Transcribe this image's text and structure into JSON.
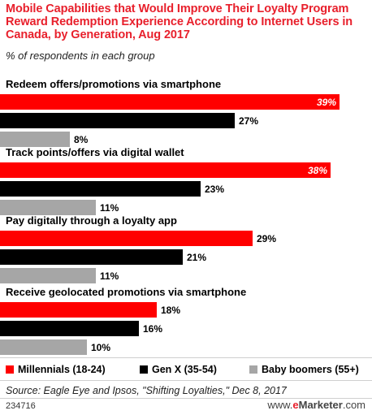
{
  "title": "Mobile Capabilities that Would Improve Their Loyalty Program Reward Redemption Experience According to Internet Users in Canada, by Generation, Aug 2017",
  "subtitle": "% of respondents in each group",
  "source": "Source: Eagle Eye and Ipsos, \"Shifting Loyalties,\" Dec 8, 2017",
  "footer": {
    "chart_id": "234716",
    "brand_prefix": "www.",
    "brand_e": "e",
    "brand_name": "Marketer",
    "brand_suffix": ".com"
  },
  "colors": {
    "millennials": "#ff0000",
    "genx": "#000000",
    "boomers": "#a6a6a6",
    "title": "#e8202c"
  },
  "chart_data": {
    "type": "bar",
    "orientation": "horizontal",
    "categories": [
      "Redeem offers/promotions via smartphone",
      "Track points/offers via digital wallet",
      "Pay digitally through a loyalty app",
      "Receive geolocated promotions via smartphone"
    ],
    "series": [
      {
        "name": "Millennials (18-24)",
        "values": [
          39,
          38,
          29,
          18
        ]
      },
      {
        "name": "Gen X (35-54)",
        "values": [
          27,
          23,
          21,
          16
        ]
      },
      {
        "name": "Baby boomers (55+)",
        "values": [
          8,
          11,
          11,
          10
        ]
      }
    ],
    "value_suffix": "%",
    "legend_position": "bottom"
  }
}
